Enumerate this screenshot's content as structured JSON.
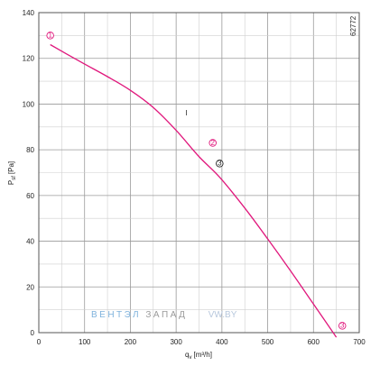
{
  "chart_data": {
    "type": "line",
    "id_label": "62772",
    "xlabel": "q",
    "xlabel_sub": "v",
    "xlabel_unit": "[m³/h]",
    "ylabel": "P",
    "ylabel_sub": "sf",
    "ylabel_unit": "[Pa]",
    "xlim": [
      0,
      700
    ],
    "ylim": [
      0,
      140
    ],
    "x_ticks": [
      0,
      100,
      200,
      300,
      400,
      500,
      600,
      700
    ],
    "y_ticks": [
      0,
      20,
      40,
      60,
      80,
      100,
      120,
      140
    ],
    "x_minor_step": 50,
    "y_minor_step": 10,
    "grid": true,
    "curve_color": "#e0177c",
    "series": [
      {
        "label": "I",
        "x": [
          25,
          60,
          100,
          150,
          200,
          250,
          300,
          350,
          395,
          450,
          500,
          550,
          600,
          650
        ],
        "y": [
          126,
          122,
          117.5,
          112,
          106,
          98.5,
          88.5,
          77,
          68,
          54.5,
          41,
          27,
          12.5,
          -2
        ]
      }
    ],
    "curve_label": {
      "text": "I",
      "x": 320,
      "y": 95
    },
    "markers": [
      {
        "text": "1",
        "x": 25,
        "y": 130,
        "color": "#e0177c"
      },
      {
        "text": "2",
        "x": 380,
        "y": 83,
        "color": "#e0177c"
      },
      {
        "text": "3",
        "x": 395,
        "y": 74,
        "color": "#222222"
      },
      {
        "text": "3",
        "x": 663,
        "y": 3,
        "color": "#e0177c"
      }
    ],
    "watermark": {
      "part1": "ВЕНТЭЛ",
      "part2": "ЗАПАД",
      "part3": "VW.BY",
      "color1": "#7fb2dc",
      "color2": "#9a9a9a",
      "color3": "#b8c8dd"
    }
  }
}
